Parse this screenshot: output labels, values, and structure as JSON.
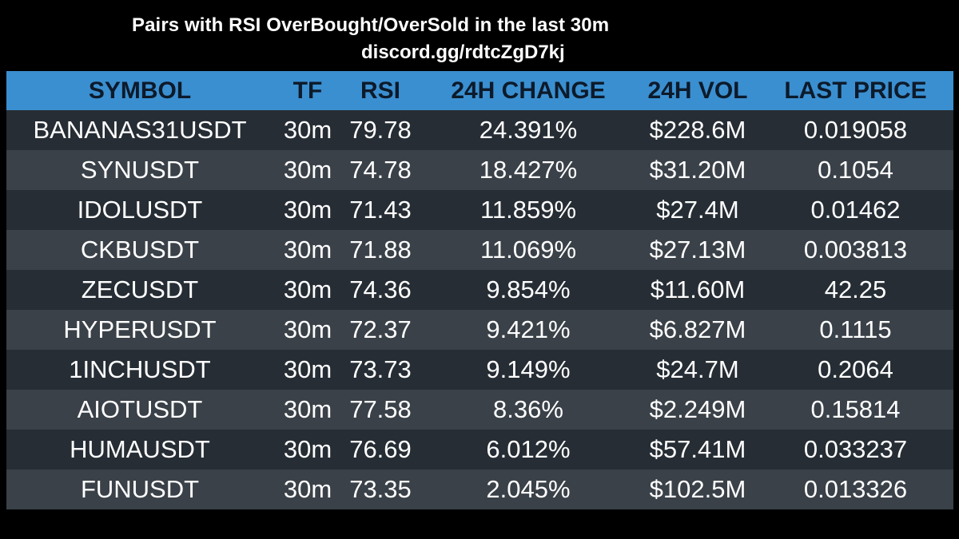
{
  "title": "Pairs with RSI OverBought/OverSold in the last 30m",
  "subtitle": "discord.gg/rdtcZgD7kj",
  "colors": {
    "background": "#000000",
    "header_bg": "#3a8fd0",
    "header_text": "#0d1a2a",
    "row_dark": "#262d34",
    "row_light": "#3a4148",
    "row_text": "#ffffff"
  },
  "table": {
    "headers": [
      "SYMBOL",
      "TF",
      "RSI",
      "24H CHANGE",
      "24H VOL",
      "LAST PRICE"
    ],
    "rows": [
      [
        "BANANAS31USDT",
        "30m",
        "79.78",
        "24.391%",
        "$228.6M",
        "0.019058"
      ],
      [
        "SYNUSDT",
        "30m",
        "74.78",
        "18.427%",
        "$31.20M",
        "0.1054"
      ],
      [
        "IDOLUSDT",
        "30m",
        "71.43",
        "11.859%",
        "$27.4M",
        "0.01462"
      ],
      [
        "CKBUSDT",
        "30m",
        "71.88",
        "11.069%",
        "$27.13M",
        "0.003813"
      ],
      [
        "ZECUSDT",
        "30m",
        "74.36",
        "9.854%",
        "$11.60M",
        "42.25"
      ],
      [
        "HYPERUSDT",
        "30m",
        "72.37",
        "9.421%",
        "$6.827M",
        "0.1115"
      ],
      [
        "1INCHUSDT",
        "30m",
        "73.73",
        "9.149%",
        "$24.7M",
        "0.2064"
      ],
      [
        "AIOTUSDT",
        "30m",
        "77.58",
        "8.36%",
        "$2.249M",
        "0.15814"
      ],
      [
        "HUMAUSDT",
        "30m",
        "76.69",
        "6.012%",
        "$57.41M",
        "0.033237"
      ],
      [
        "FUNUSDT",
        "30m",
        "73.35",
        "2.045%",
        "$102.5M",
        "0.013326"
      ]
    ]
  }
}
